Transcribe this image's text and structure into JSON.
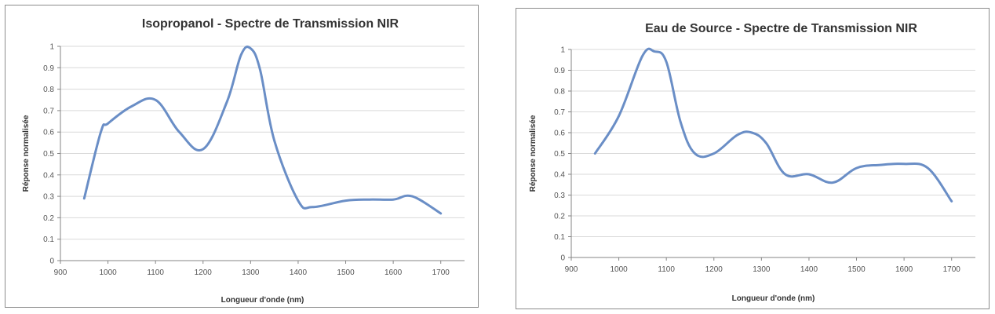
{
  "chart_data": [
    {
      "type": "line",
      "title": "Isopropanol - Spectre de Transmission NIR",
      "xlabel": "Longueur d'onde (nm)",
      "ylabel": "Réponse normalisée",
      "xlim": [
        900,
        1750
      ],
      "ylim": [
        0,
        1
      ],
      "x_ticks": [
        "900",
        "1000",
        "1100",
        "1200",
        "1300",
        "1400",
        "1500",
        "1600",
        "1700"
      ],
      "y_ticks": [
        "0",
        "0.1",
        "0.2",
        "0.3",
        "0.4",
        "0.5",
        "0.6",
        "0.7",
        "0.8",
        "0.9",
        "1"
      ],
      "grid": "horizontal",
      "legend": "none",
      "color": "#6a8ec6",
      "series": [
        {
          "x": [
            950,
            985,
            1000,
            1050,
            1100,
            1150,
            1200,
            1250,
            1280,
            1300,
            1320,
            1350,
            1400,
            1430,
            1500,
            1550,
            1600,
            1640,
            1700
          ],
          "y": [
            0.29,
            0.6,
            0.64,
            0.72,
            0.75,
            0.6,
            0.52,
            0.74,
            0.96,
            0.99,
            0.89,
            0.56,
            0.28,
            0.25,
            0.28,
            0.285,
            0.285,
            0.3,
            0.22
          ]
        }
      ]
    },
    {
      "type": "line",
      "title": "Eau de Source - Spectre de Transmission NIR",
      "xlabel": "Longueur d'onde (nm)",
      "ylabel": "Réponse normalisée",
      "xlim": [
        900,
        1750
      ],
      "ylim": [
        0,
        1
      ],
      "x_ticks": [
        "900",
        "1000",
        "1100",
        "1200",
        "1300",
        "1400",
        "1500",
        "1600",
        "1700"
      ],
      "y_ticks": [
        "0",
        "0.1",
        "0.2",
        "0.3",
        "0.4",
        "0.5",
        "0.6",
        "0.7",
        "0.8",
        "0.9",
        "1"
      ],
      "grid": "horizontal",
      "legend": "none",
      "color": "#6a8ec6",
      "series": [
        {
          "x": [
            950,
            1000,
            1050,
            1075,
            1100,
            1130,
            1160,
            1200,
            1250,
            1280,
            1310,
            1350,
            1400,
            1450,
            1500,
            1550,
            1600,
            1650,
            1700
          ],
          "y": [
            0.5,
            0.68,
            0.97,
            0.99,
            0.94,
            0.65,
            0.5,
            0.5,
            0.59,
            0.6,
            0.55,
            0.4,
            0.4,
            0.36,
            0.43,
            0.445,
            0.45,
            0.43,
            0.27
          ]
        }
      ]
    }
  ]
}
